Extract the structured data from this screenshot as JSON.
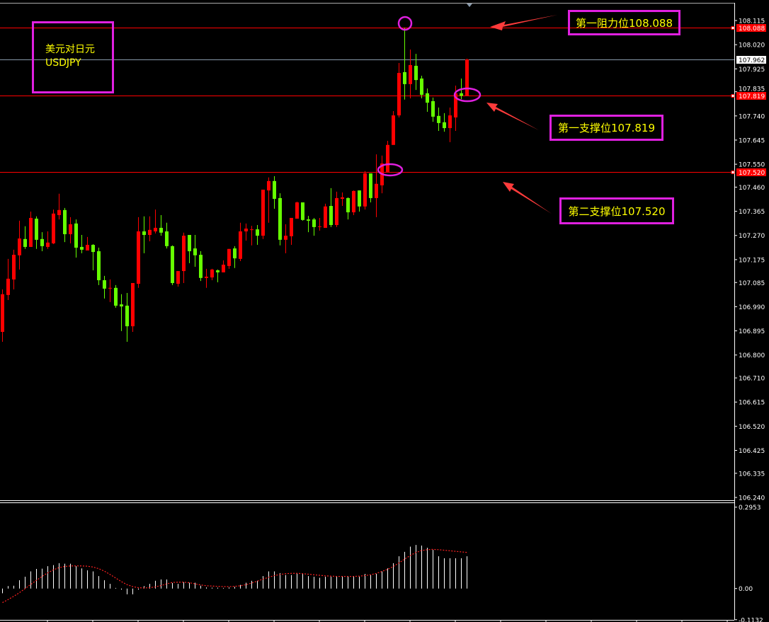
{
  "title": {
    "line1": "美元对日元",
    "line2": "USDJPY"
  },
  "annotations": {
    "resistance1": "第一阻力位108.088",
    "support1": "第一支撑位107.819",
    "support2": "第二支撑位107.520"
  },
  "colors": {
    "up": "#ff0000",
    "down": "#66ff00",
    "annotation_border": "#e020e0",
    "annotation_text": "#ffff00",
    "level_line": "#ff0000",
    "bid_line": "#8899aa",
    "background": "#000000"
  },
  "chart_data": [
    {
      "type": "candlestick",
      "symbol": "USDJPY",
      "ylim": [
        106.24,
        108.115
      ],
      "yticks": [
        "108.115",
        "108.020",
        "107.925",
        "107.835",
        "107.740",
        "107.645",
        "107.550",
        "107.460",
        "107.365",
        "107.270",
        "107.175",
        "107.085",
        "106.990",
        "106.895",
        "106.800",
        "106.710",
        "106.615",
        "106.520",
        "106.425",
        "106.335",
        "106.240"
      ],
      "current_price": "107.962",
      "levels": [
        {
          "label": "108.088",
          "value": 108.088
        },
        {
          "label": "107.819",
          "value": 107.819
        },
        {
          "label": "107.520",
          "value": 107.52
        }
      ],
      "ohlc": [
        [
          106.891,
          107.058,
          106.852,
          107.039
        ],
        [
          107.036,
          107.178,
          107.016,
          107.1
        ],
        [
          107.097,
          107.214,
          107.058,
          107.194
        ],
        [
          107.192,
          107.328,
          107.136,
          107.258
        ],
        [
          107.256,
          107.306,
          107.217,
          107.225
        ],
        [
          107.225,
          107.364,
          107.225,
          107.339
        ],
        [
          107.336,
          107.345,
          107.217,
          107.253
        ],
        [
          107.256,
          107.283,
          107.208,
          107.228
        ],
        [
          107.225,
          107.286,
          107.217,
          107.242
        ],
        [
          107.239,
          107.372,
          107.236,
          107.356
        ],
        [
          107.35,
          107.434,
          107.333,
          107.37
        ],
        [
          107.37,
          107.378,
          107.244,
          107.275
        ],
        [
          107.275,
          107.342,
          107.239,
          107.314
        ],
        [
          107.317,
          107.333,
          107.183,
          107.222
        ],
        [
          107.225,
          107.272,
          107.2,
          107.214
        ],
        [
          107.211,
          107.264,
          107.211,
          107.233
        ],
        [
          107.233,
          107.236,
          107.133,
          107.205
        ],
        [
          107.208,
          107.222,
          107.075,
          107.094
        ],
        [
          107.094,
          107.111,
          107.022,
          107.061
        ],
        [
          107.064,
          107.097,
          107.008,
          107.064
        ],
        [
          107.064,
          107.075,
          106.986,
          106.994
        ],
        [
          106.999,
          107.039,
          106.894,
          106.991
        ],
        [
          106.994,
          107.044,
          106.852,
          106.913
        ],
        [
          106.913,
          107.083,
          106.891,
          107.083
        ],
        [
          107.08,
          107.342,
          107.064,
          107.286
        ],
        [
          107.286,
          107.345,
          107.2,
          107.272
        ],
        [
          107.272,
          107.345,
          107.247,
          107.292
        ],
        [
          107.286,
          107.372,
          107.278,
          107.3
        ],
        [
          107.3,
          107.35,
          107.269,
          107.281
        ],
        [
          107.286,
          107.32,
          107.219,
          107.228
        ],
        [
          107.228,
          107.231,
          107.075,
          107.083
        ],
        [
          107.08,
          107.13,
          107.069,
          107.13
        ],
        [
          107.13,
          107.281,
          107.083,
          107.269
        ],
        [
          107.272,
          107.272,
          107.161,
          107.208
        ],
        [
          107.219,
          107.272,
          107.147,
          107.192
        ],
        [
          107.194,
          107.208,
          107.091,
          107.103
        ],
        [
          107.103,
          107.139,
          107.064,
          107.108
        ],
        [
          107.105,
          107.139,
          107.094,
          107.136
        ],
        [
          107.133,
          107.136,
          107.086,
          107.125
        ],
        [
          107.125,
          107.172,
          107.125,
          107.155
        ],
        [
          107.15,
          107.217,
          107.139,
          107.217
        ],
        [
          107.219,
          107.228,
          107.142,
          107.18
        ],
        [
          107.178,
          107.32,
          107.169,
          107.286
        ],
        [
          107.286,
          107.317,
          107.25,
          107.297
        ],
        [
          107.294,
          107.308,
          107.231,
          107.294
        ],
        [
          107.294,
          107.311,
          107.233,
          107.269
        ],
        [
          107.269,
          107.45,
          107.256,
          107.45
        ],
        [
          107.447,
          107.498,
          107.32,
          107.484
        ],
        [
          107.484,
          107.503,
          107.375,
          107.414
        ],
        [
          107.417,
          107.436,
          107.231,
          107.253
        ],
        [
          107.253,
          107.314,
          107.2,
          107.269
        ],
        [
          107.267,
          107.339,
          107.233,
          107.339
        ],
        [
          107.336,
          107.403,
          107.336,
          107.4
        ],
        [
          107.4,
          107.4,
          107.328,
          107.331
        ],
        [
          107.333,
          107.347,
          107.283,
          107.328
        ],
        [
          107.333,
          107.339,
          107.269,
          107.303
        ],
        [
          107.306,
          107.339,
          107.289,
          107.306
        ],
        [
          107.3,
          107.395,
          107.3,
          107.384
        ],
        [
          107.386,
          107.456,
          107.303,
          107.311
        ],
        [
          107.311,
          107.442,
          107.303,
          107.417
        ],
        [
          107.414,
          107.439,
          107.386,
          107.42
        ],
        [
          107.417,
          107.42,
          107.333,
          107.361
        ],
        [
          107.361,
          107.447,
          107.35,
          107.445
        ],
        [
          107.447,
          107.447,
          107.364,
          107.384
        ],
        [
          107.384,
          107.523,
          107.372,
          107.514
        ],
        [
          107.514,
          107.514,
          107.4,
          107.417
        ],
        [
          107.417,
          107.589,
          107.342,
          107.473
        ],
        [
          107.467,
          107.584,
          107.436,
          107.553
        ],
        [
          107.52,
          107.642,
          107.52,
          107.626
        ],
        [
          107.626,
          107.759,
          107.626,
          107.742
        ],
        [
          107.742,
          107.948,
          107.734,
          107.909
        ],
        [
          107.912,
          108.087,
          107.804,
          107.865
        ],
        [
          107.865,
          108.001,
          107.809,
          107.94
        ],
        [
          107.937,
          107.984,
          107.842,
          107.881
        ],
        [
          107.887,
          107.898,
          107.809,
          107.823
        ],
        [
          107.829,
          107.848,
          107.756,
          107.792
        ],
        [
          107.798,
          107.812,
          107.717,
          107.737
        ],
        [
          107.74,
          107.773,
          107.681,
          107.712
        ],
        [
          107.715,
          107.751,
          107.678,
          107.692
        ],
        [
          107.692,
          107.773,
          107.637,
          107.742
        ],
        [
          107.734,
          107.859,
          107.681,
          107.829
        ],
        [
          107.829,
          107.887,
          107.806,
          107.819
        ],
        [
          107.819,
          107.965,
          107.819,
          107.962
        ]
      ]
    },
    {
      "type": "bar+line",
      "ylim": [
        -0.1132,
        0.2953
      ],
      "yticks": [
        "0.2953",
        "0.00",
        "-0.1132"
      ],
      "histogram": [
        -0.017,
        0.009,
        0.01,
        0.03,
        0.043,
        0.062,
        0.071,
        0.072,
        0.081,
        0.085,
        0.092,
        0.09,
        0.09,
        0.081,
        0.073,
        0.066,
        0.062,
        0.045,
        0.03,
        0.017,
        0.002,
        -0.004,
        -0.021,
        -0.021,
        -0.004,
        0.009,
        0.017,
        0.028,
        0.033,
        0.033,
        0.02,
        0.017,
        0.023,
        0.021,
        0.021,
        0.01,
        0.004,
        0.003,
        0.003,
        0.002,
        0.004,
        0.006,
        0.013,
        0.021,
        0.028,
        0.028,
        0.045,
        0.062,
        0.062,
        0.056,
        0.049,
        0.049,
        0.056,
        0.054,
        0.045,
        0.043,
        0.039,
        0.043,
        0.043,
        0.043,
        0.043,
        0.043,
        0.045,
        0.043,
        0.053,
        0.049,
        0.053,
        0.062,
        0.073,
        0.092,
        0.117,
        0.133,
        0.152,
        0.158,
        0.156,
        0.148,
        0.14,
        0.117,
        0.11,
        0.11,
        0.11,
        0.11,
        0.117
      ],
      "signal": [
        -0.051,
        -0.04,
        -0.028,
        -0.015,
        0.0,
        0.015,
        0.03,
        0.044,
        0.057,
        0.068,
        0.076,
        0.08,
        0.082,
        0.082,
        0.082,
        0.081,
        0.078,
        0.072,
        0.063,
        0.051,
        0.038,
        0.025,
        0.014,
        0.007,
        0.003,
        0.002,
        0.003,
        0.006,
        0.011,
        0.017,
        0.022,
        0.023,
        0.023,
        0.021,
        0.017,
        0.013,
        0.01,
        0.009,
        0.008,
        0.007,
        0.007,
        0.008,
        0.01,
        0.014,
        0.02,
        0.027,
        0.034,
        0.041,
        0.047,
        0.051,
        0.054,
        0.055,
        0.055,
        0.054,
        0.052,
        0.05,
        0.048,
        0.046,
        0.045,
        0.044,
        0.044,
        0.044,
        0.044,
        0.045,
        0.047,
        0.05,
        0.055,
        0.062,
        0.07,
        0.08,
        0.093,
        0.107,
        0.12,
        0.131,
        0.138,
        0.141,
        0.142,
        0.141,
        0.139,
        0.137,
        0.135,
        0.133,
        0.131
      ]
    }
  ]
}
